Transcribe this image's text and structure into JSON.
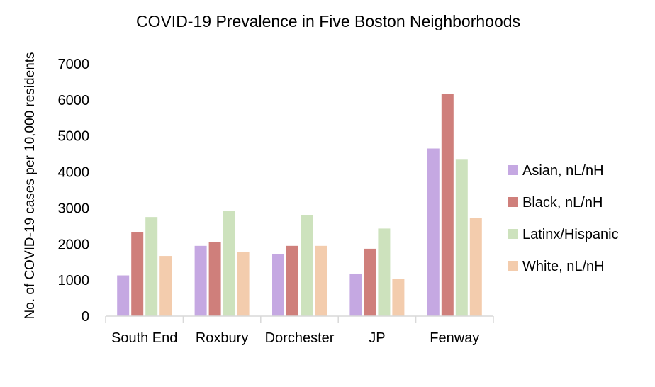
{
  "chart_data": {
    "type": "bar",
    "title": "COVID-19 Prevalence in Five Boston Neighborhoods",
    "xlabel": "",
    "ylabel": "No. of COVID-19 cases per 10,000 residents",
    "ylim": [
      0,
      7000
    ],
    "yticks": [
      0,
      1000,
      2000,
      3000,
      4000,
      5000,
      6000,
      7000
    ],
    "grid": false,
    "legend_position": "right",
    "categories": [
      "South End",
      "Roxbury",
      "Dorchester",
      "JP",
      "Fenway"
    ],
    "series": [
      {
        "name": "Asian, nL/nH",
        "color": "#c5a8e2",
        "values": [
          1130,
          1950,
          1730,
          1180,
          4650
        ]
      },
      {
        "name": "Black, nL/nH",
        "color": "#cf7f7b",
        "values": [
          2320,
          2060,
          1950,
          1870,
          6160
        ]
      },
      {
        "name": "Latinx/Hispanic",
        "color": "#cde2bd",
        "values": [
          2750,
          2920,
          2800,
          2430,
          4340
        ]
      },
      {
        "name": "White, nL/nH",
        "color": "#f3ccad",
        "values": [
          1670,
          1770,
          1950,
          1040,
          2730
        ]
      }
    ]
  }
}
